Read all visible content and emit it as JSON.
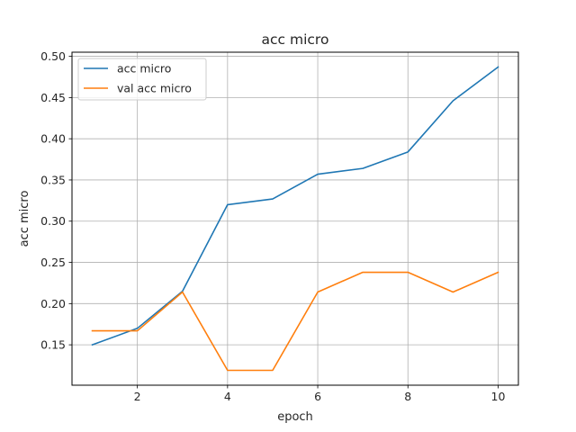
{
  "chart_data": {
    "type": "line",
    "title": "acc micro",
    "xlabel": "epoch",
    "ylabel": "acc micro",
    "x": [
      1,
      2,
      3,
      4,
      5,
      6,
      7,
      8,
      9,
      10
    ],
    "series": [
      {
        "name": "acc micro",
        "color": "#1f77b4",
        "values": [
          0.15,
          0.17,
          0.215,
          0.32,
          0.327,
          0.357,
          0.364,
          0.384,
          0.446,
          0.487
        ]
      },
      {
        "name": "val acc micro",
        "color": "#ff7f0e",
        "values": [
          0.167,
          0.167,
          0.214,
          0.119,
          0.119,
          0.214,
          0.238,
          0.238,
          0.214,
          0.238
        ]
      }
    ],
    "xticks": [
      2,
      4,
      6,
      8,
      10
    ],
    "xtick_labels": [
      "2",
      "4",
      "6",
      "8",
      "10"
    ],
    "yticks": [
      0.15,
      0.2,
      0.25,
      0.3,
      0.35,
      0.4,
      0.45,
      0.5
    ],
    "ytick_labels": [
      "0.15",
      "0.20",
      "0.25",
      "0.30",
      "0.35",
      "0.40",
      "0.45",
      "0.50"
    ],
    "xlim": [
      0.55,
      10.45
    ],
    "ylim": [
      0.101,
      0.505
    ],
    "grid": true,
    "legend_position": "top-left"
  }
}
